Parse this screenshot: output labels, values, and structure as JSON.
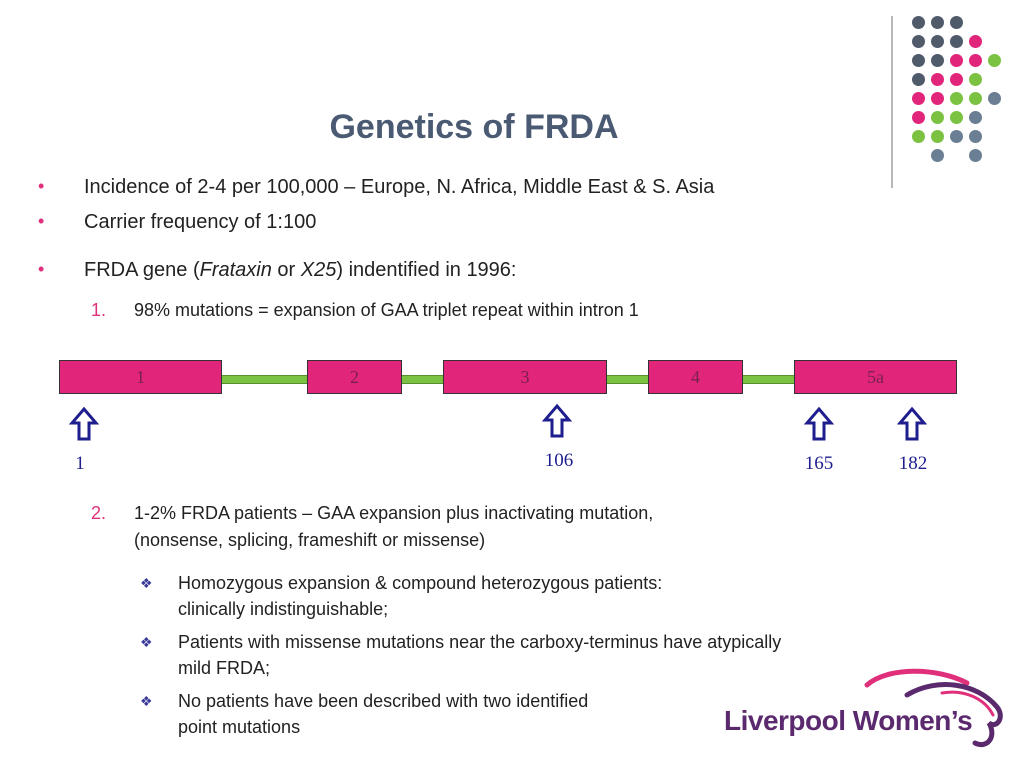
{
  "slide": {
    "title": "Genetics of FRDA",
    "bullets": [
      "Incidence of 2-4 per 100,000 – Europe, N. Africa, Middle East & S. Asia",
      "Carrier frequency of 1:100"
    ],
    "gene_bullet": {
      "prefix": "FRDA gene (",
      "italic1": "Frataxin",
      "mid": " or ",
      "italic2": "X25",
      "suffix": ") indentified in 1996:"
    },
    "numbered": [
      {
        "num": "1.",
        "text": "98% mutations = expansion of GAA triplet repeat within intron 1"
      },
      {
        "num": "2.",
        "line1": "1-2% FRDA patients – GAA expansion plus inactivating mutation,",
        "line2": "(nonsense, splicing, frameshift or missense)"
      }
    ],
    "sub_bullets": [
      {
        "line1": "Homozygous expansion & compound heterozygous patients:",
        "line2": "clinically indistinguishable;"
      },
      {
        "line1": "Patients with missense mutations near the carboxy-terminus have atypically",
        "line2": "mild FRDA;"
      },
      {
        "line1": "No patients have been described with two identified",
        "line2": "point mutations"
      }
    ],
    "bullet_mark": "•",
    "sub_mark": "❖"
  },
  "gene_diagram": {
    "exons": [
      "1",
      "2",
      "3",
      "4",
      "5a"
    ],
    "positions": [
      "1",
      "106",
      "165",
      "182"
    ]
  },
  "logo": {
    "text": "Liverpool Women’s"
  },
  "colors": {
    "title": "#4a5a72",
    "accent": "#e0307b",
    "exon": "#e0257a",
    "intron": "#7cc242",
    "logo": "#5b2a6e"
  }
}
